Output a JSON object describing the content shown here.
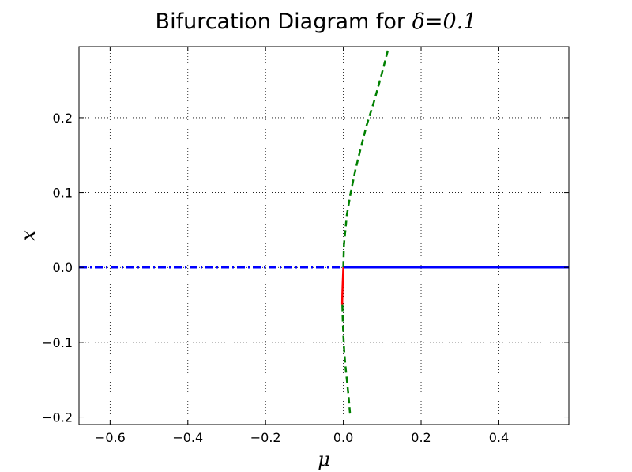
{
  "chart_data": {
    "type": "line",
    "title": "Bifurcation Diagram for δ=0.1",
    "title_text": "Bifurcation Diagram for ",
    "title_math": "δ=0.1",
    "xlabel": "μ",
    "ylabel": "x",
    "xlim": [
      -0.68,
      0.58
    ],
    "ylim": [
      -0.21,
      0.295
    ],
    "grid": true,
    "x_ticks": [
      {
        "value": -0.6,
        "label": "−0.6"
      },
      {
        "value": -0.4,
        "label": "−0.4"
      },
      {
        "value": -0.2,
        "label": "−0.2"
      },
      {
        "value": 0.0,
        "label": "0.0"
      },
      {
        "value": 0.2,
        "label": "0.2"
      },
      {
        "value": 0.4,
        "label": "0.4"
      }
    ],
    "y_ticks": [
      {
        "value": -0.2,
        "label": "−0.2"
      },
      {
        "value": -0.1,
        "label": "−0.1"
      },
      {
        "value": 0.0,
        "label": "0.0"
      },
      {
        "value": 0.1,
        "label": "0.1"
      },
      {
        "value": 0.2,
        "label": "0.2"
      }
    ],
    "series": [
      {
        "color": "#0000ff",
        "style": "dashdot",
        "x": [
          -0.68,
          0.0
        ],
        "y": [
          0.0,
          0.0
        ]
      },
      {
        "color": "#0000ff",
        "style": "solid",
        "x": [
          0.0,
          0.58
        ],
        "y": [
          0.0,
          0.0
        ]
      },
      {
        "color": "#008000",
        "style": "dashed",
        "x": [
          0.0,
          0.0015,
          0.009,
          0.019,
          0.031,
          0.045,
          0.06,
          0.078,
          0.097,
          0.117
        ],
        "y": [
          0.0,
          0.03,
          0.07,
          0.1,
          0.13,
          0.16,
          0.19,
          0.22,
          0.255,
          0.295
        ]
      },
      {
        "color": "#008000",
        "style": "dashed",
        "x": [
          -0.0025,
          -0.0015,
          0.0,
          0.002,
          0.005,
          0.009,
          0.013,
          0.018
        ],
        "y": [
          -0.05,
          -0.07,
          -0.09,
          -0.11,
          -0.13,
          -0.15,
          -0.17,
          -0.2
        ]
      },
      {
        "color": "#ff0000",
        "style": "solid",
        "x": [
          0.0,
          -0.0015,
          -0.0025,
          -0.003
        ],
        "y": [
          0.0,
          -0.02,
          -0.035,
          -0.05
        ]
      }
    ]
  }
}
